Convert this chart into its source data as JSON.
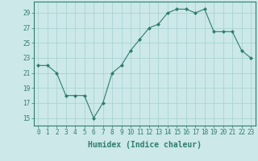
{
  "x": [
    0,
    1,
    2,
    3,
    4,
    5,
    6,
    7,
    8,
    9,
    10,
    11,
    12,
    13,
    14,
    15,
    16,
    17,
    18,
    19,
    20,
    21,
    22,
    23
  ],
  "y": [
    22,
    22,
    21,
    18,
    18,
    18,
    15,
    17,
    21,
    22,
    24,
    25.5,
    27,
    27.5,
    29,
    29.5,
    29.5,
    29,
    29.5,
    26.5,
    26.5,
    26.5,
    24,
    23
  ],
  "line_color": "#2e7d6e",
  "marker": "D",
  "marker_size": 2,
  "bg_color": "#cce8e8",
  "grid_color": "#aad4d4",
  "xlabel": "Humidex (Indice chaleur)",
  "xlim": [
    -0.5,
    23.5
  ],
  "ylim": [
    14,
    30.5
  ],
  "yticks": [
    15,
    17,
    19,
    21,
    23,
    25,
    27,
    29
  ],
  "xticks": [
    0,
    1,
    2,
    3,
    4,
    5,
    6,
    7,
    8,
    9,
    10,
    11,
    12,
    13,
    14,
    15,
    16,
    17,
    18,
    19,
    20,
    21,
    22,
    23
  ],
  "tick_label_fontsize": 5.5,
  "xlabel_fontsize": 7.0,
  "axis_color": "#2e7d6e",
  "linewidth": 0.8
}
